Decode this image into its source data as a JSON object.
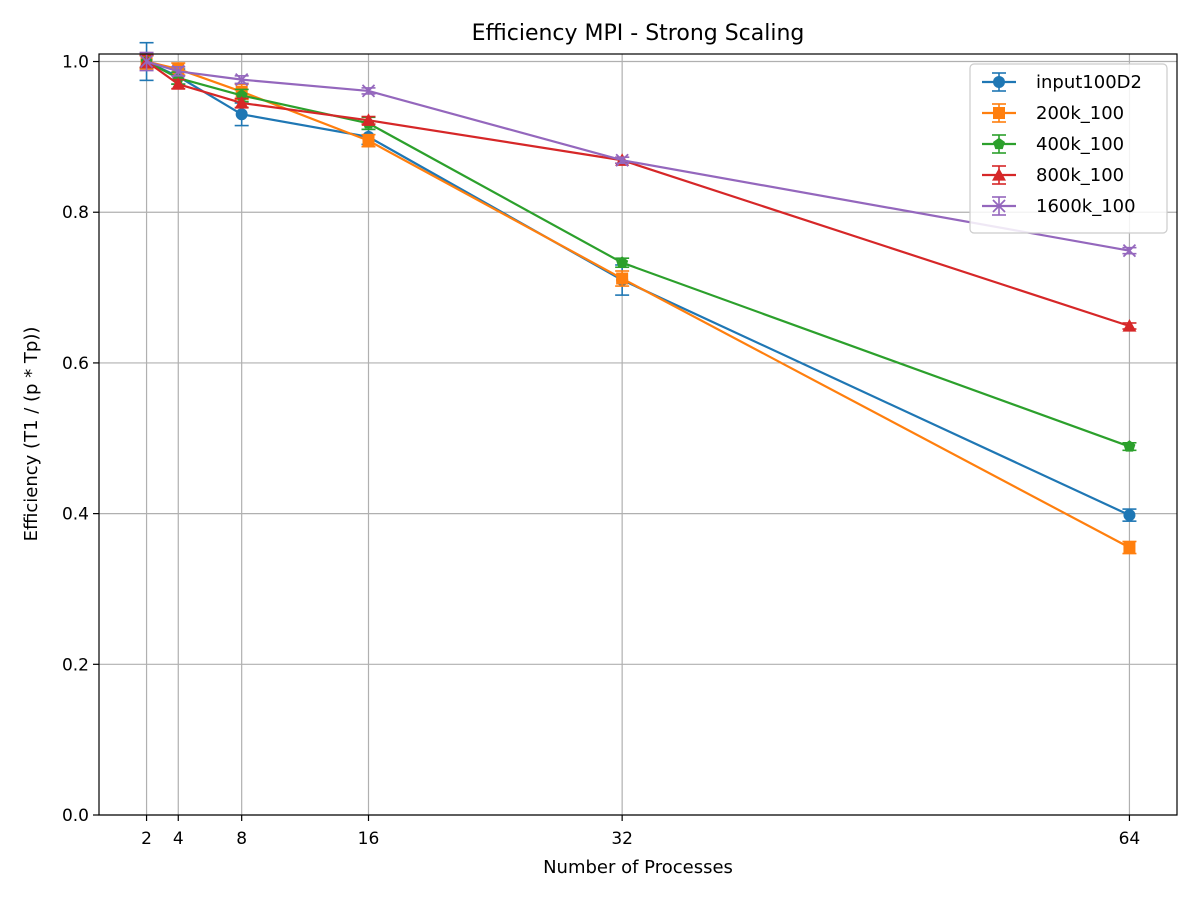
{
  "chart_data": {
    "type": "line",
    "title": "Efficiency MPI - Strong Scaling",
    "xlabel": "Number of Processes",
    "ylabel": "Efficiency (T1 / (p * Tp))",
    "x": [
      2,
      4,
      8,
      16,
      32,
      64
    ],
    "xticks": [
      "2",
      "4",
      "8",
      "16",
      "32",
      "64"
    ],
    "xlim": [
      -1,
      67
    ],
    "yticks": [
      "0.0",
      "0.2",
      "0.4",
      "0.6",
      "0.8",
      "1.0"
    ],
    "ylim": [
      0.0,
      1.01
    ],
    "grid": true,
    "legend_position": "top-right",
    "error_bars": true,
    "series": [
      {
        "name": "input100D2",
        "color": "#1f77b4",
        "marker": "circle",
        "values": [
          1.0,
          0.98,
          0.93,
          0.9,
          0.71,
          0.398
        ],
        "errors": [
          0.025,
          0.01,
          0.015,
          0.01,
          0.02,
          0.008
        ]
      },
      {
        "name": "200k_100",
        "color": "#ff7f0e",
        "marker": "square",
        "values": [
          1.0,
          0.99,
          0.96,
          0.895,
          0.712,
          0.355
        ],
        "errors": [
          0.01,
          0.008,
          0.01,
          0.008,
          0.01,
          0.008
        ]
      },
      {
        "name": "400k_100",
        "color": "#2ca02c",
        "marker": "pentagon",
        "values": [
          1.0,
          0.978,
          0.955,
          0.918,
          0.733,
          0.489
        ],
        "errors": [
          0.008,
          0.008,
          0.008,
          0.008,
          0.006,
          0.005
        ]
      },
      {
        "name": "800k_100",
        "color": "#d62728",
        "marker": "triangle",
        "values": [
          1.0,
          0.97,
          0.945,
          0.922,
          0.869,
          0.649
        ],
        "errors": [
          0.008,
          0.006,
          0.006,
          0.005,
          0.004,
          0.004
        ]
      },
      {
        "name": "1600k_100",
        "color": "#9467bd",
        "marker": "x",
        "values": [
          1.0,
          0.987,
          0.976,
          0.961,
          0.869,
          0.749
        ],
        "errors": [
          0.012,
          0.006,
          0.005,
          0.004,
          0.004,
          0.004
        ]
      }
    ]
  }
}
